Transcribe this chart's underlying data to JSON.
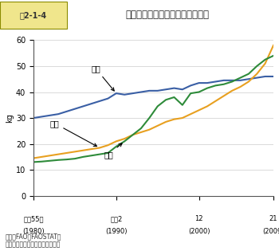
{
  "title": "図2-1-4　1人1年当たり肉類消費量の推移",
  "ylabel": "kg",
  "years": [
    1980,
    1981,
    1982,
    1983,
    1984,
    1985,
    1986,
    1987,
    1988,
    1989,
    1990,
    1991,
    1992,
    1993,
    1994,
    1995,
    1996,
    1997,
    1998,
    1999,
    2000,
    2001,
    2002,
    2003,
    2004,
    2005,
    2006,
    2007,
    2008,
    2009
  ],
  "japan": [
    30.0,
    30.5,
    31.0,
    31.5,
    32.5,
    33.5,
    34.5,
    35.5,
    36.5,
    37.5,
    39.5,
    39.0,
    39.5,
    40.0,
    40.5,
    40.5,
    41.0,
    41.5,
    41.0,
    42.5,
    43.5,
    43.5,
    44.0,
    44.5,
    44.5,
    44.5,
    45.0,
    45.5,
    46.0,
    46.0
  ],
  "china": [
    14.5,
    15.0,
    15.5,
    16.0,
    16.5,
    17.0,
    17.5,
    18.0,
    18.5,
    19.5,
    21.0,
    22.0,
    23.5,
    24.5,
    25.5,
    27.0,
    28.5,
    29.5,
    30.0,
    31.5,
    33.0,
    34.5,
    36.5,
    38.5,
    40.5,
    42.0,
    44.0,
    47.0,
    51.0,
    58.0
  ],
  "korea": [
    13.0,
    13.2,
    13.5,
    13.8,
    14.0,
    14.3,
    15.0,
    15.5,
    16.0,
    16.5,
    19.0,
    21.0,
    23.5,
    26.0,
    30.0,
    34.5,
    37.0,
    38.0,
    35.0,
    39.5,
    40.0,
    41.5,
    42.5,
    43.0,
    44.0,
    45.5,
    47.0,
    50.0,
    52.5,
    54.0
  ],
  "japan_color": "#3a5fa5",
  "china_color": "#e8a020",
  "korea_color": "#2e8b3a",
  "xlim_min": 1980,
  "xlim_max": 2009,
  "ylim_min": 0,
  "ylim_max": 60,
  "yticks": [
    0,
    10,
    20,
    30,
    40,
    50,
    60
  ],
  "xticks": [
    1980,
    1990,
    2000,
    2009
  ],
  "xtick_labels_top": [
    "昭和55年",
    "平成2",
    "12",
    "21"
  ],
  "xtick_labels_bottom": [
    "(1980)",
    "(1990)",
    "(2000)",
    "(2009)"
  ],
  "source_text": "資料：FAO「FAOSTAT」\n　注：供給粗食料ベースの数値。",
  "label_japan": "日本",
  "label_china": "中国",
  "label_korea": "韓国",
  "title_box_color": "#f0e68c",
  "fig_label": "図2-1-4",
  "fig_title": "１人１年当たり肉類消費量の推移"
}
